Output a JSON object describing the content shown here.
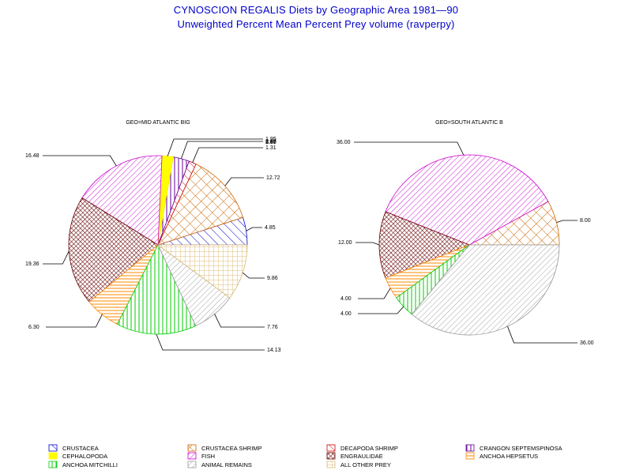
{
  "title": "CYNOSCION REGALIS Diets by Geographic Area 1981—90",
  "subtitle": "Unweighted Percent Mean Percent Prey  volume (ravperpy)",
  "categories": [
    {
      "name": "CRUSTACEA",
      "color": "#0000cc",
      "pattern": "diag-up"
    },
    {
      "name": "CRUSTACEA SHRIMP",
      "color": "#cc6600",
      "pattern": "crosshatch"
    },
    {
      "name": "DECAPODA SHRIMP",
      "color": "#cc0000",
      "pattern": "diag-up"
    },
    {
      "name": "CRANGON SEPTEMSPINOSA",
      "color": "#660099",
      "pattern": "vertical"
    },
    {
      "name": "CEPHALOPODA",
      "color": "#ffff00",
      "pattern": "solid"
    },
    {
      "name": "FISH",
      "color": "#cc00cc",
      "pattern": "diag-down"
    },
    {
      "name": "ENGRAULIDAE",
      "color": "#660000",
      "pattern": "dense-crosshatch"
    },
    {
      "name": "ANCHOA HEPSETUS",
      "color": "#ff8800",
      "pattern": "horizontal"
    },
    {
      "name": "ANCHOA MITCHILLI",
      "color": "#00cc00",
      "pattern": "vertical"
    },
    {
      "name": "ANIMAL REMAINS",
      "color": "#999999",
      "pattern": "diag-down"
    },
    {
      "name": "ALL OTHER PREY",
      "color": "#ddbb77",
      "pattern": "grid"
    }
  ],
  "chart_data": [
    {
      "type": "pie",
      "title": "GEO=MID ATLANTIC BIG",
      "slices": [
        {
          "category": "CRUSTACEA",
          "value": 4.85,
          "label": "4.85"
        },
        {
          "category": "CRUSTACEA SHRIMP",
          "value": 12.72,
          "label": "12.72"
        },
        {
          "category": "DECAPODA SHRIMP",
          "value": 1.31,
          "label": "1.31"
        },
        {
          "category": "CRANGON SEPTEMSPINOSA",
          "value": 2.87,
          "label": "2.87"
        },
        {
          "category": "CEPHALOPODA",
          "value": 1.95,
          "label": "1.95"
        },
        {
          "category": "FISH",
          "value": 16.48,
          "label": "16.48"
        },
        {
          "category": "ENGRAULIDAE",
          "value": 19.36,
          "label": "19.36"
        },
        {
          "category": "ANCHOA HEPSETUS",
          "value": 6.3,
          "label": "6.30"
        },
        {
          "category": "ANCHOA MITCHILLI",
          "value": 14.13,
          "label": "14.13"
        },
        {
          "category": "ANIMAL REMAINS",
          "value": 7.76,
          "label": "7.76"
        },
        {
          "category": "ALL OTHER PREY",
          "value": 9.86,
          "label": "9.86"
        }
      ],
      "overlapping_labels": [
        "1.95",
        "2.87",
        "5.00"
      ]
    },
    {
      "type": "pie",
      "title": "GEO=SOUTH ATLANTIC B",
      "slices": [
        {
          "category": "CRUSTACEA SHRIMP",
          "value": 8.0,
          "label": "8.00"
        },
        {
          "category": "FISH",
          "value": 36.0,
          "label": "36.00"
        },
        {
          "category": "ENGRAULIDAE",
          "value": 12.0,
          "label": "12.00"
        },
        {
          "category": "ANCHOA HEPSETUS",
          "value": 4.0,
          "label": "4.00"
        },
        {
          "category": "ANCHOA MITCHILLI",
          "value": 4.0,
          "label": "4.00"
        },
        {
          "category": "ANIMAL REMAINS",
          "value": 36.0,
          "label": "36.00"
        }
      ]
    }
  ]
}
